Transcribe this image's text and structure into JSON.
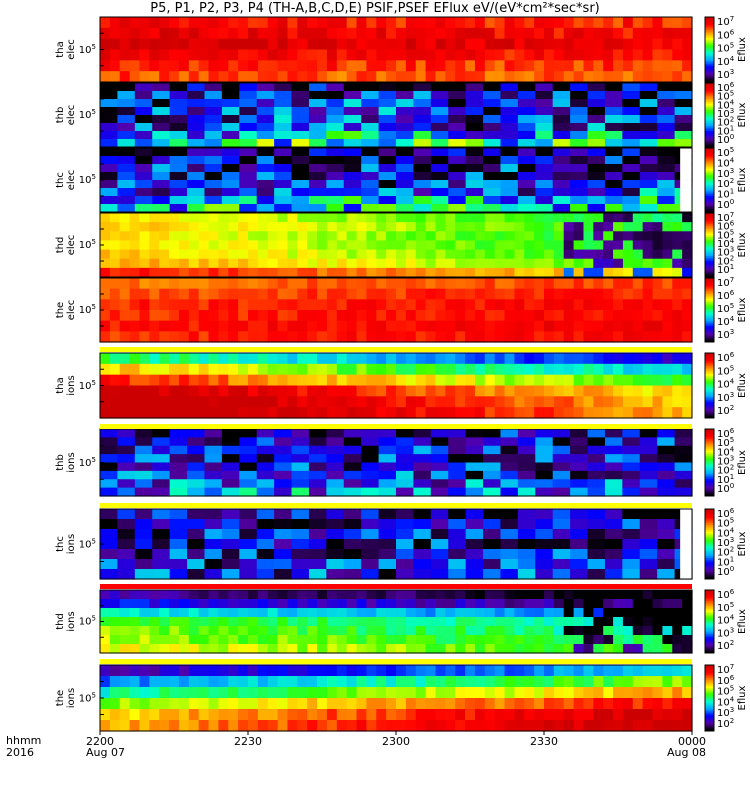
{
  "title": "P5, P1, P2, P3, P4 (TH-A,B,C,D,E) PSIF,PSEF EFlux eV/(eV*cm²*sec*sr)",
  "axis_labels": {
    "time_format": "hhmm",
    "year": "2016"
  },
  "chart_data": {
    "type": "heatmap",
    "title": "P5, P1, P2, P3, P4 (TH-A,B,C,D,E) PSIF,PSEF EFlux eV/(eV*cm²*sec*sr)",
    "x": {
      "ticks": [
        {
          "label": "2200",
          "date": "Aug 07",
          "minutes": 0
        },
        {
          "label": "2230",
          "date": "",
          "minutes": 30
        },
        {
          "label": "2300",
          "date": "",
          "minutes": 60
        },
        {
          "label": "2330",
          "date": "",
          "minutes": 90
        },
        {
          "label": "0000",
          "date": "Aug 08",
          "minutes": 120
        }
      ],
      "range_minutes": [
        0,
        120
      ]
    },
    "colorbar_label": "Eflux",
    "colormap": [
      "#000000",
      "#5500aa",
      "#0000ff",
      "#00aaff",
      "#00ffcc",
      "#33ff00",
      "#ffff00",
      "#ff8800",
      "#ff0000",
      "#cc0000"
    ],
    "panels": [
      {
        "probe": "tha",
        "species": "elec",
        "ylabel": "tha\nelec",
        "ytick": "10",
        "ytick_exp": "5",
        "cbar_ticks": [
          {
            "b": "10",
            "e": "7"
          },
          {
            "b": "10",
            "e": "6"
          },
          {
            "b": "10",
            "e": "5"
          },
          {
            "b": "10",
            "e": "4"
          },
          {
            "b": "10",
            "e": "3"
          }
        ],
        "intensity": [
          8.6,
          8.3,
          7.2
        ],
        "bands": [
          0.88,
          0.92,
          0.95,
          0.9,
          0.85,
          0.82
        ],
        "band_noise": 0.25,
        "trend": -0.05
      },
      {
        "probe": "thb",
        "species": "elec",
        "ylabel": "thb\nelec",
        "ytick": "10",
        "ytick_exp": "5",
        "cbar_ticks": [
          {
            "b": "10",
            "e": "6"
          },
          {
            "b": "10",
            "e": "5"
          },
          {
            "b": "10",
            "e": "4"
          },
          {
            "b": "10",
            "e": "3"
          },
          {
            "b": "10",
            "e": "2"
          },
          {
            "b": "10",
            "e": "1"
          },
          {
            "b": "10",
            "e": "0"
          }
        ],
        "intensity": [
          1.4,
          1.6,
          1.8
        ],
        "bands": [
          0.1,
          0.15,
          0.2,
          0.2,
          0.2,
          0.22,
          0.35,
          0.45
        ],
        "band_noise": 0.9,
        "trend": 0.0
      },
      {
        "probe": "thc",
        "species": "elec",
        "ylabel": "thc\nelec",
        "ytick": "10",
        "ytick_exp": "5",
        "cbar_ticks": [
          {
            "b": "10",
            "e": "5"
          },
          {
            "b": "10",
            "e": "4"
          },
          {
            "b": "10",
            "e": "3"
          },
          {
            "b": "10",
            "e": "2"
          },
          {
            "b": "10",
            "e": "1"
          },
          {
            "b": "10",
            "e": "0"
          }
        ],
        "intensity": [
          1.2,
          1.5,
          1.7
        ],
        "bands": [
          0.05,
          0.1,
          0.15,
          0.18,
          0.18,
          0.25,
          0.35,
          0.4
        ],
        "band_noise": 0.9,
        "trend": 0.0,
        "end_gap": 0.02
      },
      {
        "probe": "thd",
        "species": "elec",
        "ylabel": "thd\nelec",
        "ytick": "10",
        "ytick_exp": "5",
        "cbar_ticks": [
          {
            "b": "10",
            "e": "7"
          },
          {
            "b": "10",
            "e": "6"
          },
          {
            "b": "10",
            "e": "5"
          },
          {
            "b": "10",
            "e": "4"
          },
          {
            "b": "10",
            "e": "3"
          },
          {
            "b": "10",
            "e": "2"
          },
          {
            "b": "10",
            "e": "1"
          }
        ],
        "intensity": [
          6.2,
          6.0,
          6.4
        ],
        "bands": [
          0.6,
          0.62,
          0.6,
          0.6,
          0.62,
          0.65,
          0.78
        ],
        "band_noise": 0.15,
        "trend": -0.2,
        "drop_after": 0.78
      },
      {
        "probe": "the",
        "species": "elec",
        "ylabel": "the\nelec",
        "ytick": "10",
        "ytick_exp": "5",
        "cbar_ticks": [
          {
            "b": "10",
            "e": "7"
          },
          {
            "b": "10",
            "e": "6"
          },
          {
            "b": "10",
            "e": "5"
          },
          {
            "b": "10",
            "e": "4"
          },
          {
            "b": "10",
            "e": "3"
          }
        ],
        "intensity": [
          7.9,
          8.4,
          8.6
        ],
        "bands": [
          0.82,
          0.85,
          0.88,
          0.88,
          0.9,
          0.88
        ],
        "band_noise": 0.15,
        "trend": 0.05
      },
      {
        "probe": "tha",
        "species": "ions",
        "ylabel": "tha\nions",
        "ytick": "10",
        "ytick_exp": "5",
        "cbar_ticks": [
          {
            "b": "10",
            "e": "6"
          },
          {
            "b": "10",
            "e": "5"
          },
          {
            "b": "10",
            "e": "4"
          },
          {
            "b": "10",
            "e": "3"
          },
          {
            "b": "10",
            "e": "2"
          }
        ],
        "intensity": [
          8.5,
          8.2,
          7.0
        ],
        "bands": [
          0.35,
          0.55,
          0.7,
          0.85,
          0.9,
          0.92
        ],
        "band_noise": 0.2,
        "trend": -0.35
      },
      {
        "probe": "thb",
        "species": "ions",
        "ylabel": "thb\nions",
        "ytick": "10",
        "ytick_exp": "5",
        "cbar_ticks": [
          {
            "b": "10",
            "e": "6"
          },
          {
            "b": "10",
            "e": "5"
          },
          {
            "b": "10",
            "e": "4"
          },
          {
            "b": "10",
            "e": "3"
          },
          {
            "b": "10",
            "e": "2"
          },
          {
            "b": "10",
            "e": "1"
          },
          {
            "b": "10",
            "e": "0"
          }
        ],
        "intensity": [
          1.3,
          1.4,
          1.5
        ],
        "bands": [
          0.12,
          0.14,
          0.16,
          0.16,
          0.18,
          0.2,
          0.24,
          0.3
        ],
        "band_noise": 0.8,
        "trend": 0.0
      },
      {
        "probe": "thc",
        "species": "ions",
        "ylabel": "thc\nions",
        "ytick": "10",
        "ytick_exp": "5",
        "cbar_ticks": [
          {
            "b": "10",
            "e": "6"
          },
          {
            "b": "10",
            "e": "5"
          },
          {
            "b": "10",
            "e": "4"
          },
          {
            "b": "10",
            "e": "3"
          },
          {
            "b": "10",
            "e": "2"
          },
          {
            "b": "10",
            "e": "1"
          },
          {
            "b": "10",
            "e": "0"
          }
        ],
        "intensity": [
          1.2,
          1.3,
          1.3
        ],
        "bands": [
          0.1,
          0.14,
          0.15,
          0.15,
          0.16,
          0.18,
          0.2
        ],
        "band_noise": 0.8,
        "trend": 0.0,
        "end_gap": 0.02
      },
      {
        "probe": "thd",
        "species": "ions",
        "ylabel": "thd\nions",
        "ytick": "10",
        "ytick_exp": "5",
        "cbar_ticks": [
          {
            "b": "10",
            "e": "6"
          },
          {
            "b": "10",
            "e": "5"
          },
          {
            "b": "10",
            "e": "4"
          },
          {
            "b": "10",
            "e": "3"
          },
          {
            "b": "10",
            "e": "2"
          }
        ],
        "intensity": [
          4.8,
          4.6,
          3.6
        ],
        "bands": [
          0.05,
          0.15,
          0.35,
          0.5,
          0.52,
          0.55,
          0.6
        ],
        "band_noise": 0.2,
        "trend": -0.15,
        "drop_after": 0.78
      },
      {
        "probe": "the",
        "species": "ions",
        "ylabel": "the\nions",
        "ytick": "10",
        "ytick_exp": "5",
        "cbar_ticks": [
          {
            "b": "10",
            "e": "7"
          },
          {
            "b": "10",
            "e": "6"
          },
          {
            "b": "10",
            "e": "5"
          },
          {
            "b": "10",
            "e": "4"
          },
          {
            "b": "10",
            "e": "3"
          },
          {
            "b": "10",
            "e": "2"
          }
        ],
        "intensity": [
          6.2,
          7.8,
          8.4
        ],
        "bands": [
          0.25,
          0.45,
          0.6,
          0.75,
          0.85,
          0.88
        ],
        "band_noise": 0.2,
        "trend": 0.3
      }
    ],
    "separator_bars": [
      {
        "after_panel": 4,
        "color": "#ffff00"
      },
      {
        "after_panel": 5,
        "color": "#ffff00"
      },
      {
        "after_panel": 6,
        "color": "#ffff00"
      },
      {
        "after_panel": 7,
        "color": "#ff0000"
      },
      {
        "after_panel": 8,
        "color": "#ffff00"
      }
    ]
  }
}
